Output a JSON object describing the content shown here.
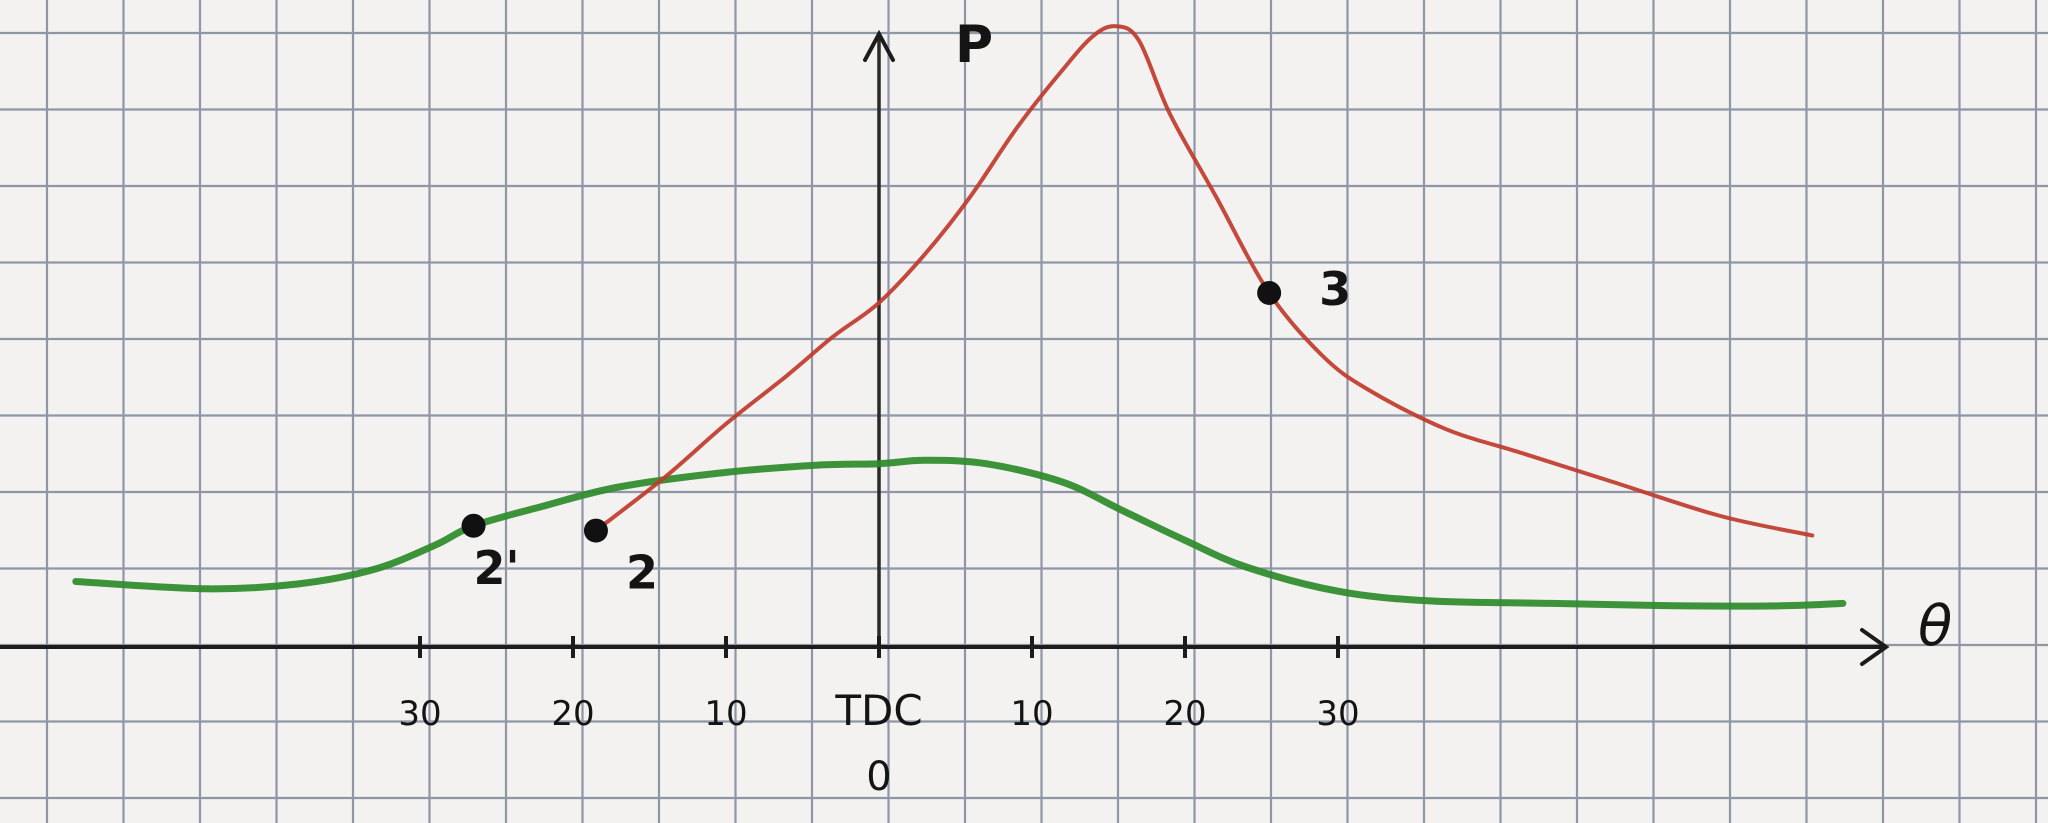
{
  "chart_data": {
    "type": "line",
    "title": "",
    "xlabel": "θ",
    "ylabel": "P",
    "x_tick_labels": [
      "30",
      "20",
      "10",
      "TDC",
      "10",
      "20",
      "30"
    ],
    "x_tick_values": [
      -30,
      -20,
      -10,
      0,
      10,
      20,
      30
    ],
    "origin_label": "0",
    "grid": true,
    "series": [
      {
        "color": "#2e8b2a",
        "x": [
          -52.5,
          -44,
          -38,
          -33,
          -29,
          -26.5,
          -22,
          -17,
          -10,
          -4,
          0,
          3,
          7,
          12,
          16,
          20,
          24,
          30,
          36,
          44,
          52,
          59,
          63
        ],
        "y": [
          1.35,
          1.2,
          1.3,
          1.6,
          2.1,
          2.5,
          2.9,
          3.3,
          3.6,
          3.75,
          3.78,
          3.85,
          3.78,
          3.4,
          2.8,
          2.2,
          1.65,
          1.15,
          0.95,
          0.9,
          0.85,
          0.85,
          0.9
        ]
      },
      {
        "color": "#c0392b",
        "x": [
          -18.5,
          -14,
          -10,
          -6,
          -3,
          0,
          3,
          6,
          9,
          12,
          14,
          15.5,
          17,
          19,
          22,
          25.5,
          29,
          32,
          37,
          42,
          48,
          55,
          61
        ],
        "y": [
          2.4,
          3.5,
          4.6,
          5.6,
          6.4,
          7.1,
          8.1,
          9.3,
          10.7,
          11.9,
          12.6,
          12.8,
          12.5,
          11.0,
          9.3,
          7.3,
          6.0,
          5.3,
          4.5,
          4.0,
          3.4,
          2.7,
          2.3
        ]
      }
    ],
    "points": [
      {
        "label": "2'",
        "x": -26.5,
        "y": 2.5
      },
      {
        "label": "2",
        "x": -18.5,
        "y": 2.4
      },
      {
        "label": "3",
        "x": 25.5,
        "y": 7.3
      }
    ]
  }
}
